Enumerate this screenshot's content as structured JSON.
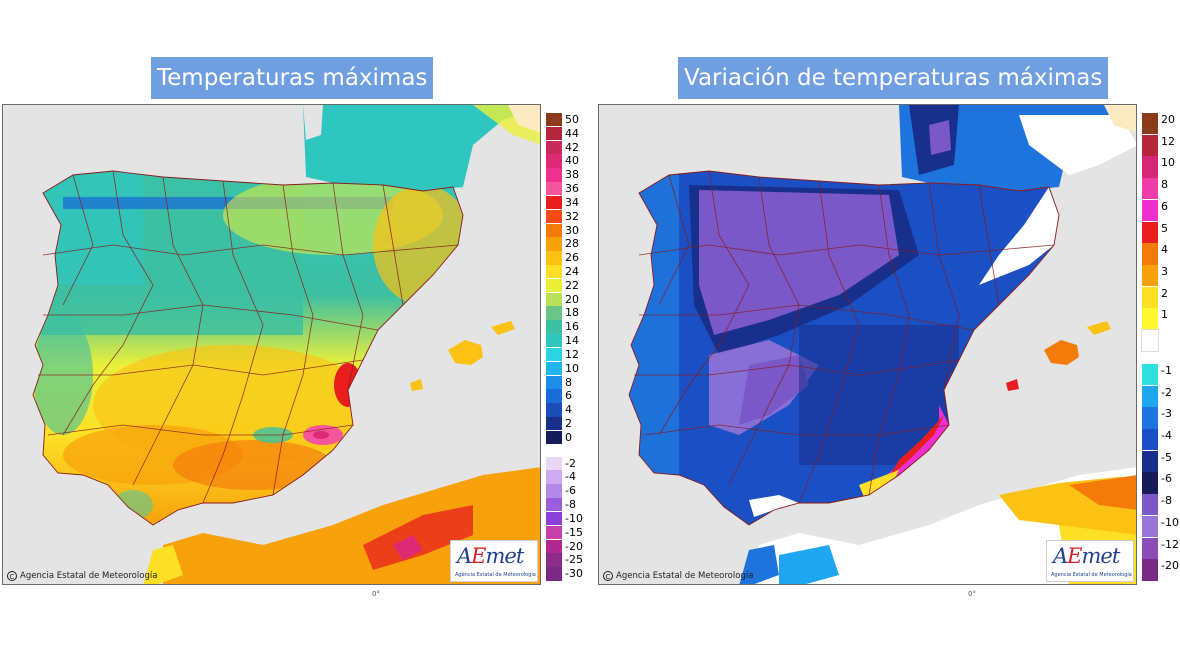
{
  "left_panel": {
    "title": "Temperaturas máximas",
    "credit": "Agencia Estatal de Meteorología",
    "logo_word_a": "A",
    "logo_word_e": "E",
    "logo_word_rest": "met",
    "logo_sub": "Agencia Estatal de Meteorología",
    "legend": [
      {
        "label": "50",
        "color": "#8b3a1a"
      },
      {
        "label": "44",
        "color": "#b3263b"
      },
      {
        "label": "42",
        "color": "#c8285a"
      },
      {
        "label": "40",
        "color": "#de2a75"
      },
      {
        "label": "38",
        "color": "#f0308f"
      },
      {
        "label": "36",
        "color": "#f5559a"
      },
      {
        "label": "34",
        "color": "#e81d1d"
      },
      {
        "label": "32",
        "color": "#f44a14"
      },
      {
        "label": "30",
        "color": "#f47a0a"
      },
      {
        "label": "28",
        "color": "#f8a10b"
      },
      {
        "label": "26",
        "color": "#fbc214"
      },
      {
        "label": "24",
        "color": "#fde025"
      },
      {
        "label": "22",
        "color": "#eaf03a"
      },
      {
        "label": "20",
        "color": "#b8e05a"
      },
      {
        "label": "18",
        "color": "#6cc488"
      },
      {
        "label": "16",
        "color": "#3dbfa1"
      },
      {
        "label": "14",
        "color": "#2fc6c0"
      },
      {
        "label": "12",
        "color": "#2ad4e2"
      },
      {
        "label": "10",
        "color": "#22b4f0"
      },
      {
        "label": "8",
        "color": "#1d8ee8"
      },
      {
        "label": "6",
        "color": "#1a6dd6"
      },
      {
        "label": "4",
        "color": "#1a4db8"
      },
      {
        "label": "2",
        "color": "#192f8c"
      },
      {
        "label": "0",
        "color": "#141c5a"
      },
      {
        "label": "-2",
        "color": "#e9d6f4"
      },
      {
        "label": "-4",
        "color": "#ceaaf0"
      },
      {
        "label": "-6",
        "color": "#b488ea"
      },
      {
        "label": "-8",
        "color": "#9a5de0"
      },
      {
        "label": "-10",
        "color": "#8a3fd8"
      },
      {
        "label": "-15",
        "color": "#c73fa8"
      },
      {
        "label": "-20",
        "color": "#b02890"
      },
      {
        "label": "-25",
        "color": "#8e2a88"
      },
      {
        "label": "-30",
        "color": "#7a2a86"
      }
    ]
  },
  "right_panel": {
    "title": "Variación de temperaturas máximas",
    "credit": "Agencia Estatal de Meteorología",
    "logo_word_a": "A",
    "logo_word_e": "E",
    "logo_word_rest": "met",
    "logo_sub": "Agencia Estatal de Meteorología",
    "legend": [
      {
        "label": "20",
        "color": "#8b3a1a"
      },
      {
        "label": "12",
        "color": "#b3263b"
      },
      {
        "label": "10",
        "color": "#d42a76"
      },
      {
        "label": "8",
        "color": "#f03ca6"
      },
      {
        "label": "6",
        "color": "#ee2fd0"
      },
      {
        "label": "5",
        "color": "#e81d1d"
      },
      {
        "label": "4",
        "color": "#f47a0a"
      },
      {
        "label": "3",
        "color": "#f8a10b"
      },
      {
        "label": "2",
        "color": "#fde025"
      },
      {
        "label": "1",
        "color": "#fff830"
      },
      {
        "label": "",
        "color": "#ffffff"
      },
      {
        "label": "-1",
        "color": "#30e0e0"
      },
      {
        "label": "-2",
        "color": "#1fa6f0"
      },
      {
        "label": "-3",
        "color": "#1e74dc"
      },
      {
        "label": "-4",
        "color": "#1b4fc4"
      },
      {
        "label": "-5",
        "color": "#192f8c"
      },
      {
        "label": "-6",
        "color": "#141c5a"
      },
      {
        "label": "-8",
        "color": "#7a58c8"
      },
      {
        "label": "-10",
        "color": "#9a76d8"
      },
      {
        "label": "-12",
        "color": "#8c4cb8"
      },
      {
        "label": "-20",
        "color": "#7a2a86"
      }
    ]
  },
  "colors": {
    "title_bg": "#6f9fe0",
    "sea": "#e4e4e4",
    "border": "#8b1a1a"
  },
  "tick_label": "0°"
}
